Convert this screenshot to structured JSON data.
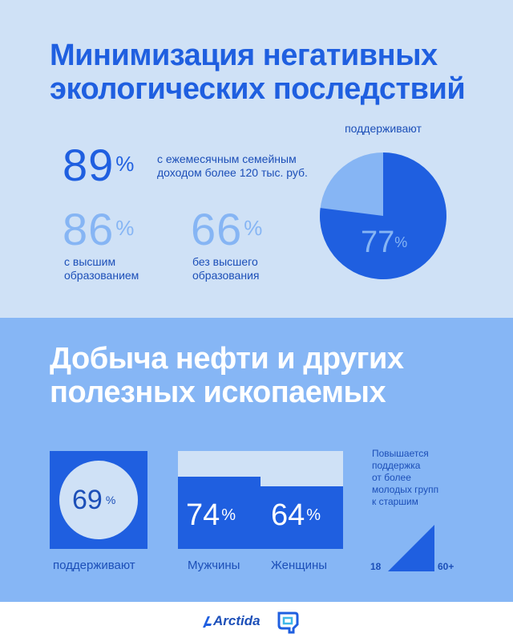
{
  "section1": {
    "title_line1": "Минимизация негативных",
    "title_line2": "экологических последствий",
    "stat_main": {
      "value": "89",
      "unit": "%",
      "text_line1": "с ежемесячным семейным",
      "text_line2": "доходом более 120 тыс. руб."
    },
    "stat_a": {
      "value": "86",
      "unit": "%",
      "text_line1": "с высшим",
      "text_line2": "образованием"
    },
    "stat_b": {
      "value": "66",
      "unit": "%",
      "text_line1": "без высшего",
      "text_line2": "образования"
    },
    "pie": {
      "label": "поддерживают",
      "value_text": "77",
      "unit": "%",
      "fraction": 0.77
    }
  },
  "section2": {
    "title_line1": "Добыча нефти и других",
    "title_line2": "полезных ископаемых",
    "support": {
      "value": "69",
      "unit": "%",
      "label": "поддерживают"
    },
    "gender": {
      "men": {
        "value": "74",
        "unit": "%",
        "label": "Мужчины",
        "fraction": 0.74
      },
      "women": {
        "value": "64",
        "unit": "%",
        "label": "Женщины",
        "fraction": 0.64
      }
    },
    "age_note": {
      "line1": "Повышается",
      "line2": "поддержка",
      "line3": "от более",
      "line4": "молодых групп",
      "line5": "к старшим",
      "from": "18",
      "to": "60+"
    }
  },
  "footer": {
    "brand": "Arctida"
  },
  "colors": {
    "dark": "#1f5fe0",
    "light": "#86b5f4",
    "pale": "#cfe1f6",
    "mid": "#86b6f5"
  }
}
